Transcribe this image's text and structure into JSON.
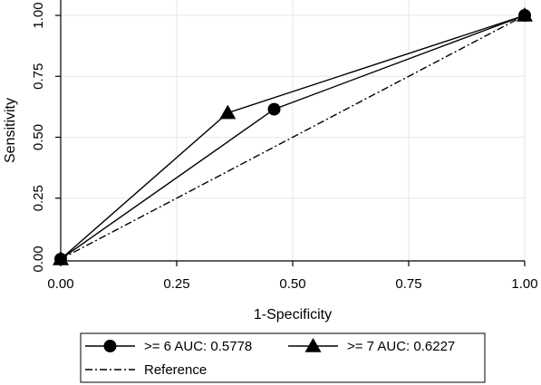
{
  "chart_data": {
    "type": "line",
    "xlabel": "1-Specificity",
    "ylabel": "Sensitivity",
    "xlim": [
      0,
      1
    ],
    "ylim": [
      0,
      1
    ],
    "x_ticks": [
      "0.00",
      "0.25",
      "0.50",
      "0.75",
      "1.00"
    ],
    "y_ticks": [
      "0.00",
      "0.25",
      "0.50",
      "0.75",
      "1.00"
    ],
    "grid": true,
    "legend_position": "bottom",
    "series": [
      {
        "name": ">= 6 AUC: 0.5778",
        "marker": "circle",
        "points": [
          [
            0,
            0
          ],
          [
            0.46,
            0.615
          ],
          [
            1,
            1
          ]
        ]
      },
      {
        "name": ">= 7 AUC: 0.6227",
        "marker": "triangle",
        "points": [
          [
            0,
            0
          ],
          [
            0.36,
            0.6
          ],
          [
            1,
            1
          ]
        ]
      },
      {
        "name": "Reference",
        "marker": "none",
        "line_style": "dash-dot",
        "points": [
          [
            0,
            0
          ],
          [
            1,
            1
          ]
        ]
      }
    ]
  }
}
